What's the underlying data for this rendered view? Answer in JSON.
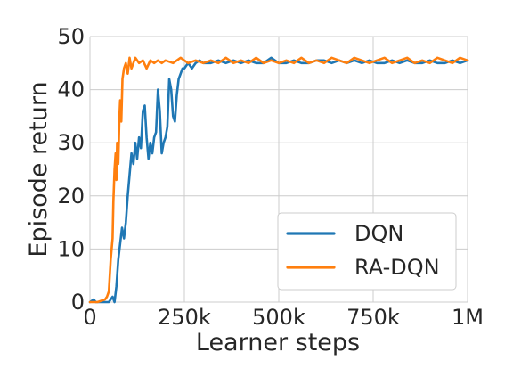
{
  "chart_data": {
    "type": "line",
    "xlabel": "Learner steps",
    "ylabel": "Episode return",
    "xlim": [
      0,
      1000000
    ],
    "ylim": [
      0,
      50
    ],
    "x_ticks": [
      0,
      250000,
      500000,
      750000,
      1000000
    ],
    "x_tick_labels": [
      "0",
      "250k",
      "500k",
      "750k",
      "1M"
    ],
    "y_ticks": [
      0,
      10,
      20,
      30,
      40,
      50
    ],
    "y_tick_labels": [
      "0",
      "10",
      "20",
      "30",
      "40",
      "50"
    ],
    "grid": true,
    "legend_position": "lower-right",
    "series": [
      {
        "name": "DQN",
        "color": "#1f77b4",
        "x": [
          0,
          10000,
          15000,
          20000,
          30000,
          40000,
          50000,
          55000,
          60000,
          65000,
          70000,
          75000,
          80000,
          85000,
          90000,
          95000,
          100000,
          105000,
          110000,
          115000,
          120000,
          125000,
          130000,
          135000,
          140000,
          145000,
          150000,
          155000,
          160000,
          165000,
          170000,
          175000,
          180000,
          185000,
          190000,
          195000,
          200000,
          205000,
          210000,
          215000,
          220000,
          225000,
          230000,
          235000,
          240000,
          245000,
          250000,
          260000,
          270000,
          280000,
          290000,
          300000,
          320000,
          340000,
          360000,
          380000,
          400000,
          420000,
          440000,
          460000,
          480000,
          500000,
          520000,
          540000,
          560000,
          580000,
          600000,
          620000,
          640000,
          660000,
          680000,
          700000,
          720000,
          740000,
          760000,
          780000,
          800000,
          820000,
          840000,
          860000,
          880000,
          900000,
          920000,
          940000,
          960000,
          980000,
          1000000
        ],
        "y": [
          0,
          0.5,
          0,
          0,
          0,
          0,
          0,
          0.5,
          1,
          0,
          3,
          8,
          11,
          14,
          12,
          15,
          20,
          24,
          28,
          26,
          30,
          27,
          31,
          29,
          36,
          37,
          31,
          27,
          30,
          28,
          31,
          32,
          40,
          36,
          28,
          30,
          31,
          33,
          42,
          40,
          35,
          34,
          39,
          42,
          43,
          44,
          44,
          45,
          44,
          45,
          45.5,
          45,
          45,
          45.5,
          45,
          45.5,
          45,
          45.5,
          45,
          45,
          46,
          45,
          45,
          45.5,
          45,
          45,
          45.5,
          45.5,
          45,
          45.5,
          45,
          45.5,
          45,
          45.5,
          45,
          45,
          45.5,
          45,
          45.5,
          45,
          45,
          45.5,
          45,
          45,
          45.5,
          45,
          45.5
        ]
      },
      {
        "name": "RA-DQN",
        "color": "#ff7f0e",
        "x": [
          0,
          20000,
          40000,
          45000,
          50000,
          55000,
          60000,
          62000,
          65000,
          68000,
          70000,
          72000,
          75000,
          78000,
          80000,
          83000,
          86000,
          90000,
          95000,
          100000,
          105000,
          110000,
          115000,
          120000,
          130000,
          140000,
          150000,
          160000,
          170000,
          180000,
          190000,
          200000,
          220000,
          240000,
          260000,
          280000,
          300000,
          320000,
          340000,
          360000,
          380000,
          400000,
          420000,
          440000,
          460000,
          480000,
          500000,
          520000,
          540000,
          560000,
          580000,
          600000,
          620000,
          640000,
          660000,
          680000,
          700000,
          720000,
          740000,
          760000,
          780000,
          800000,
          820000,
          840000,
          860000,
          880000,
          900000,
          920000,
          940000,
          960000,
          980000,
          1000000
        ],
        "y": [
          0,
          0,
          0.5,
          1,
          2,
          8,
          12,
          19,
          25,
          28,
          23,
          30,
          26,
          35,
          38,
          34,
          42,
          44,
          45,
          43,
          46,
          44,
          45,
          46,
          45,
          45.5,
          44,
          45.5,
          45,
          45.5,
          45,
          45.5,
          45,
          46,
          45,
          45.5,
          45,
          45.5,
          45,
          46,
          45,
          45.5,
          45,
          46,
          45,
          45.5,
          45,
          45.5,
          45,
          46,
          45,
          45.5,
          45,
          46,
          45.5,
          45,
          46,
          45.5,
          45,
          45.5,
          46,
          45,
          45.5,
          46,
          45,
          45.5,
          45,
          46,
          45.5,
          45,
          46,
          45.5
        ]
      }
    ]
  }
}
